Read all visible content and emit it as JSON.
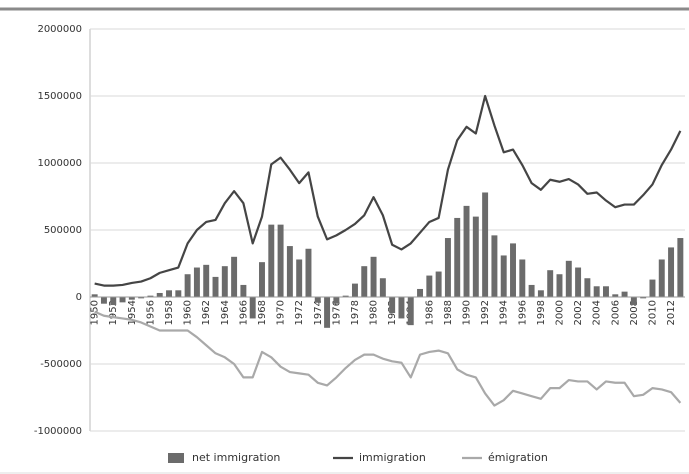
{
  "chart_data": {
    "type": "bar-line",
    "categories": [
      "1950",
      null,
      "1952",
      null,
      "1954",
      null,
      "1956",
      null,
      "1958",
      null,
      "1960",
      null,
      "1962",
      null,
      "1964",
      null,
      "1966",
      null,
      "1968",
      null,
      "1970",
      null,
      "1972",
      null,
      "1974",
      null,
      "1976",
      null,
      "1978",
      null,
      "1980",
      null,
      "1982",
      null,
      "1984",
      null,
      "1986",
      null,
      "1988",
      null,
      "1990",
      null,
      "1992",
      null,
      "1994",
      null,
      "1996",
      null,
      "1998",
      null,
      "2000",
      null,
      "2002",
      null,
      "2004",
      null,
      "2006",
      null,
      "2008",
      null,
      "2010",
      null,
      "2012",
      null
    ],
    "series": [
      {
        "name": "net immigration",
        "type": "bar",
        "color": "#6b6b6b",
        "values": [
          20000,
          -50000,
          -60000,
          -40000,
          -20000,
          -10000,
          10000,
          30000,
          50000,
          50000,
          170000,
          220000,
          240000,
          150000,
          230000,
          300000,
          90000,
          -160000,
          260000,
          540000,
          540000,
          380000,
          280000,
          360000,
          -40000,
          -230000,
          -50000,
          10000,
          100000,
          230000,
          300000,
          140000,
          -120000,
          -160000,
          -210000,
          60000,
          160000,
          190000,
          440000,
          590000,
          680000,
          600000,
          780000,
          460000,
          310000,
          400000,
          280000,
          90000,
          50000,
          200000,
          170000,
          270000,
          220000,
          140000,
          80000,
          80000,
          20000,
          40000,
          -60000,
          -10000,
          130000,
          280000,
          370000,
          440000
        ]
      },
      {
        "name": "immigration",
        "type": "line",
        "color": "#454545",
        "values": [
          100000,
          85000,
          85000,
          90000,
          105000,
          115000,
          140000,
          180000,
          200000,
          220000,
          400000,
          500000,
          560000,
          575000,
          700000,
          790000,
          700000,
          400000,
          600000,
          990000,
          1040000,
          950000,
          850000,
          930000,
          600000,
          430000,
          460000,
          500000,
          545000,
          610000,
          745000,
          610000,
          390000,
          355000,
          400000,
          480000,
          560000,
          590000,
          950000,
          1170000,
          1270000,
          1220000,
          1500000,
          1280000,
          1080000,
          1100000,
          985000,
          850000,
          800000,
          875000,
          860000,
          880000,
          840000,
          770000,
          780000,
          720000,
          670000,
          690000,
          690000,
          760000,
          840000,
          985000,
          1100000,
          1240000
        ]
      },
      {
        "name": "émigration",
        "type": "line",
        "color": "#a9a9a9",
        "values": [
          -110000,
          -140000,
          -150000,
          -160000,
          -170000,
          -190000,
          -220000,
          -250000,
          -250000,
          -250000,
          -250000,
          -300000,
          -360000,
          -420000,
          -450000,
          -500000,
          -600000,
          -600000,
          -410000,
          -450000,
          -520000,
          -560000,
          -570000,
          -580000,
          -640000,
          -660000,
          -600000,
          -530000,
          -470000,
          -430000,
          -430000,
          -460000,
          -480000,
          -490000,
          -600000,
          -430000,
          -410000,
          -400000,
          -420000,
          -540000,
          -580000,
          -600000,
          -720000,
          -810000,
          -770000,
          -700000,
          -720000,
          -740000,
          -760000,
          -680000,
          -680000,
          -620000,
          -630000,
          -630000,
          -690000,
          -630000,
          -640000,
          -640000,
          -740000,
          -730000,
          -680000,
          -690000,
          -710000,
          -790000
        ]
      }
    ],
    "ylim": [
      -1000000,
      2000000
    ],
    "yticks": [
      -1000000,
      -500000,
      0,
      500000,
      1000000,
      1500000,
      2000000
    ],
    "grid": true,
    "legend": "bottom"
  }
}
